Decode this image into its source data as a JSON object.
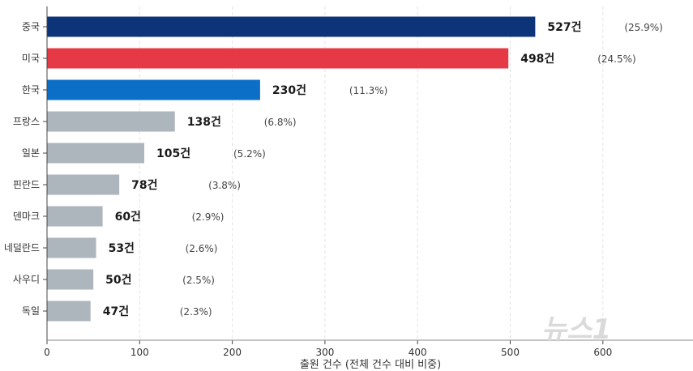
{
  "chart_data": {
    "type": "bar",
    "orientation": "horizontal",
    "categories": [
      "중국",
      "미국",
      "한국",
      "프랑스",
      "일본",
      "핀란드",
      "덴마크",
      "네덜란드",
      "사우디",
      "독일"
    ],
    "values": [
      527,
      498,
      230,
      138,
      105,
      78,
      60,
      53,
      50,
      47
    ],
    "value_labels": [
      "527건",
      "498건",
      "230건",
      "138건",
      "105건",
      "78건",
      "60건",
      "53건",
      "50건",
      "47건"
    ],
    "share_labels": [
      "(25.9%)",
      "(24.5%)",
      "(11.3%)",
      "(6.8%)",
      "(5.2%)",
      "(3.8%)",
      "(2.9%)",
      "(2.6%)",
      "(2.5%)",
      "(2.3%)"
    ],
    "colors": [
      "#0d3478",
      "#e63946",
      "#0b6fc7",
      "#adb5bd",
      "#adb5bd",
      "#adb5bd",
      "#adb5bd",
      "#adb5bd",
      "#adb5bd",
      "#adb5bd"
    ],
    "xlabel": "출원 건수 (전체 건수 대비 비중)",
    "ylabel": "",
    "xlim": [
      0,
      700
    ],
    "xticks": [
      0,
      100,
      200,
      300,
      400,
      500,
      600
    ],
    "grid": true
  },
  "watermark": "뉴스1"
}
